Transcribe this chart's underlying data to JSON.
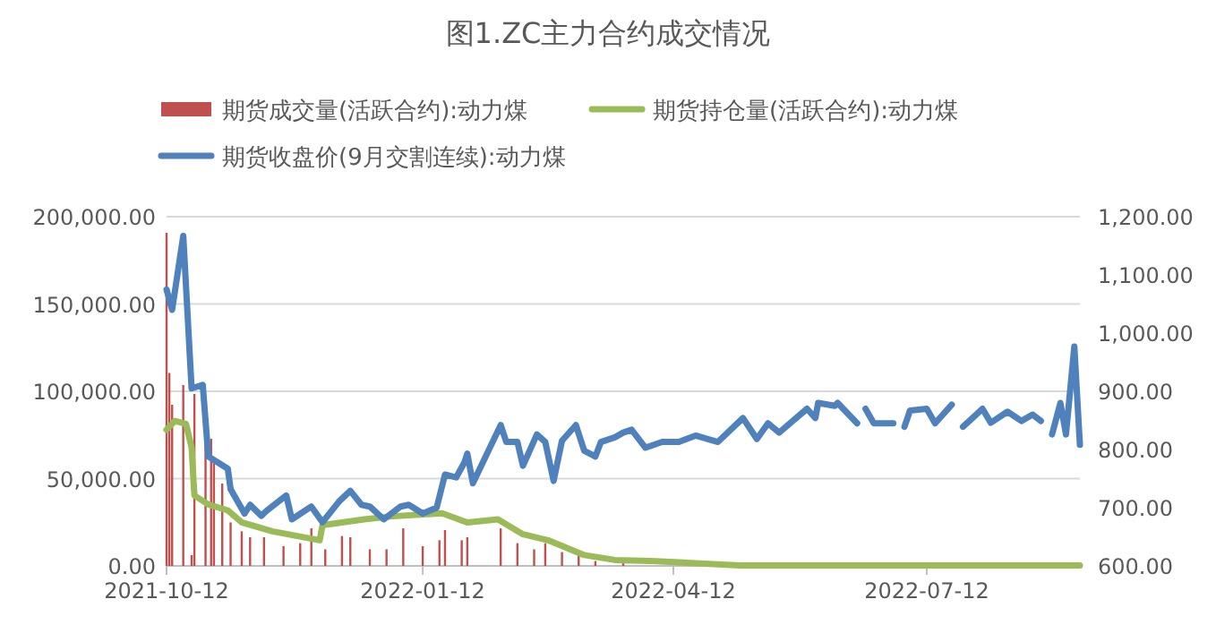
{
  "chart_data": {
    "type": "line",
    "title": "图1.ZC主力合约成交情况",
    "xlim": [
      "2021-10-12",
      "2022-09-05"
    ],
    "xticks": [
      "2021-10-12",
      "2022-01-12",
      "2022-04-12",
      "2022-07-12"
    ],
    "ylim": [
      0,
      200000
    ],
    "yticks": [
      {
        "value": 0,
        "label": "0.00"
      },
      {
        "value": 50000,
        "label": "50,000.00"
      },
      {
        "value": 100000,
        "label": "100,000.00"
      },
      {
        "value": 150000,
        "label": "150,000.00"
      },
      {
        "value": 200000,
        "label": "200,000.00"
      }
    ],
    "y2lim": [
      600,
      1200
    ],
    "y2ticks": [
      {
        "value": 600,
        "label": "600.00"
      },
      {
        "value": 700,
        "label": "700.00"
      },
      {
        "value": 800,
        "label": "800.00"
      },
      {
        "value": 900,
        "label": "900.00"
      },
      {
        "value": 1000,
        "label": "1,000.00"
      },
      {
        "value": 1100,
        "label": "1,100.00"
      },
      {
        "value": 1200,
        "label": "1,200.00"
      }
    ],
    "grid": "y",
    "legend": "top",
    "series": [
      {
        "name": "期货成交量(活跃合约):动力煤",
        "type": "bar",
        "color": "#c0504d",
        "x": [
          "2021-10-12",
          "2021-10-13",
          "2021-10-14",
          "2021-10-18",
          "2021-10-21",
          "2021-10-22",
          "2021-10-26",
          "2021-10-28",
          "2021-10-29",
          "2021-11-01",
          "2021-11-04",
          "2021-11-08",
          "2021-11-11",
          "2021-11-16",
          "2021-11-23",
          "2021-11-29",
          "2021-12-03",
          "2021-12-08",
          "2021-12-14",
          "2021-12-17",
          "2021-12-24",
          "2021-12-30",
          "2022-01-05",
          "2022-01-12",
          "2022-01-18",
          "2022-01-20",
          "2022-01-26",
          "2022-01-28",
          "2022-02-09",
          "2022-02-15",
          "2022-02-21",
          "2022-02-25",
          "2022-03-03",
          "2022-03-09",
          "2022-03-15",
          "2022-03-25"
        ],
        "values": [
          190800,
          110500,
          92300,
          103600,
          6200,
          98500,
          72800,
          72800,
          60800,
          47200,
          24900,
          19800,
          16400,
          16400,
          11300,
          13000,
          21500,
          9500,
          17100,
          16400,
          9500,
          9500,
          21500,
          11300,
          14700,
          20500,
          14700,
          16400,
          21500,
          13000,
          9500,
          13000,
          7900,
          6200,
          2800,
          1500
        ]
      },
      {
        "name": "期货持仓量(活跃合约):动力煤",
        "color": "#9bbb59",
        "x": [
          "2021-10-12",
          "2021-10-15",
          "2021-10-19",
          "2021-10-21",
          "2021-10-22",
          "2021-10-27",
          "2021-11-03",
          "2021-11-08",
          "2021-11-19",
          "2021-12-06",
          "2021-12-07",
          "2021-12-22",
          "2022-01-01",
          "2022-01-19",
          "2022-01-28",
          "2022-02-08",
          "2022-02-17",
          "2022-02-26",
          "2022-03-11",
          "2022-03-22",
          "2022-04-04",
          "2022-05-06",
          "2022-09-05"
        ],
        "values": [
          78000,
          83000,
          81300,
          67700,
          40300,
          35200,
          31800,
          24900,
          19800,
          14700,
          23300,
          26700,
          28400,
          30100,
          24900,
          26700,
          18100,
          14700,
          6200,
          3400,
          2800,
          300,
          300
        ]
      },
      {
        "name": "期货收盘价(9月交割连续):动力煤",
        "axis": "y2",
        "color": "#4f81bd",
        "x": [
          "2021-10-12",
          "2021-10-14",
          "2021-10-18",
          "2021-10-21",
          "2021-10-25",
          "2021-10-27",
          "2021-11-03",
          "2021-11-04",
          "2021-11-09",
          "2021-11-11",
          "2021-11-15",
          "2021-11-17",
          "2021-11-24",
          "2021-11-26",
          "2021-12-03",
          "2021-12-07",
          "2021-12-13",
          "2021-12-17",
          "2021-12-21",
          "2021-12-24",
          "2021-12-29",
          "2022-01-04",
          "2022-01-07",
          "2022-01-12",
          "2022-01-17",
          "2022-01-20",
          "2022-01-24",
          "2022-01-27",
          "2022-01-28",
          "2022-01-30",
          "2022-02-09",
          "2022-02-11",
          "2022-02-15",
          "2022-02-17",
          "2022-02-22",
          "2022-02-25",
          "2022-02-28",
          "2022-03-03",
          "2022-03-08",
          "2022-03-11",
          "2022-03-15",
          "2022-03-17",
          "2022-03-22",
          "2022-03-25",
          "2022-03-28",
          "2022-04-02",
          "2022-04-08",
          "2022-04-14",
          "2022-04-20",
          "2022-04-28",
          "2022-05-07",
          "2022-05-12",
          "2022-05-16",
          "2022-05-20",
          "2022-05-30",
          "2022-06-02",
          "2022-06-03",
          "2022-06-09",
          "2022-06-10",
          "2022-06-17",
          "2022-06-19",
          "2022-06-20",
          "2022-06-23",
          "2022-06-30",
          "2022-07-01",
          "2022-07-04",
          "2022-07-06",
          "2022-07-12",
          "2022-07-15",
          "2022-07-21",
          "2022-07-22",
          "2022-07-25",
          "2022-07-28",
          "2022-08-01",
          "2022-08-04",
          "2022-08-10",
          "2022-08-15",
          "2022-08-19",
          "2022-08-22",
          "2022-08-24",
          "2022-08-26",
          "2022-08-29",
          "2022-08-31",
          "2022-09-03",
          "2022-09-05"
        ],
        "values": [
          1075,
          1040,
          1167,
          905,
          911,
          788,
          767,
          732,
          690,
          705,
          686,
          695,
          721,
          680,
          702,
          675,
          711,
          729,
          705,
          702,
          680,
          702,
          705,
          690,
          700,
          757,
          752,
          778,
          793,
          742,
          842,
          813,
          813,
          772,
          826,
          813,
          746,
          815,
          842,
          798,
          788,
          813,
          821,
          829,
          834,
          803,
          813,
          813,
          824,
          813,
          854,
          818,
          845,
          829,
          870,
          854,
          880,
          875,
          880,
          845,
          null,
          870,
          845,
          845,
          null,
          839,
          867,
          870,
          845,
          877,
          null,
          839,
          852,
          870,
          846,
          865,
          849,
          860,
          849,
          null,
          826,
          880,
          826,
          977,
          808
        ]
      }
    ]
  }
}
